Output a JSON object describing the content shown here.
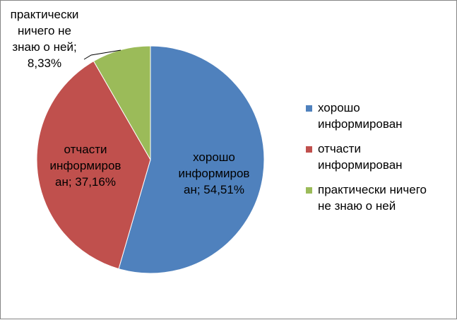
{
  "chart_data": {
    "type": "pie",
    "title": "",
    "legend_position": "right",
    "slices": [
      {
        "label": "хорошо информирован",
        "value": 54.51,
        "value_text": "54,51%",
        "color": "#4F81BD",
        "data_label": [
          "хорошо",
          "информиров",
          "ан; 54,51%"
        ]
      },
      {
        "label": "отчасти информирован",
        "value": 37.16,
        "value_text": "37,16%",
        "color": "#C0504D",
        "data_label": [
          "отчасти",
          "информиров",
          "ан; 37,16%"
        ]
      },
      {
        "label": "практически ничего не знаю о ней",
        "value": 8.33,
        "value_text": "8,33%",
        "color": "#9BBB59",
        "data_label": [
          "практически",
          "ничего не",
          "знаю о ней;",
          "8,33%"
        ]
      }
    ],
    "legend": [
      [
        "хорошо",
        "информирован"
      ],
      [
        "отчасти",
        "информирован"
      ],
      [
        "практически ничего",
        "не знаю о ней"
      ]
    ]
  }
}
